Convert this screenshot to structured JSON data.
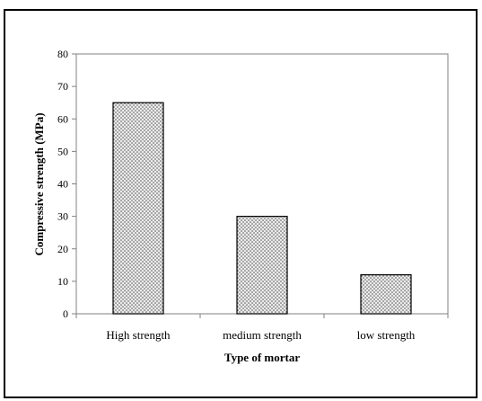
{
  "chart_data": {
    "type": "bar",
    "categories": [
      "High strength",
      "medium strength",
      "low strength"
    ],
    "values": [
      65,
      30,
      12
    ],
    "title": "",
    "xlabel": "Type of mortar",
    "ylabel": "Compressive strength (MPa)",
    "ylim": [
      0,
      80
    ],
    "yticks": [
      "0",
      "10",
      "20",
      "30",
      "40",
      "50",
      "60",
      "70",
      "80"
    ],
    "grid": false,
    "legend": "none",
    "bar_fill": "#d9d9d9",
    "bar_stroke": "#000000",
    "plot_border": "#808080"
  }
}
